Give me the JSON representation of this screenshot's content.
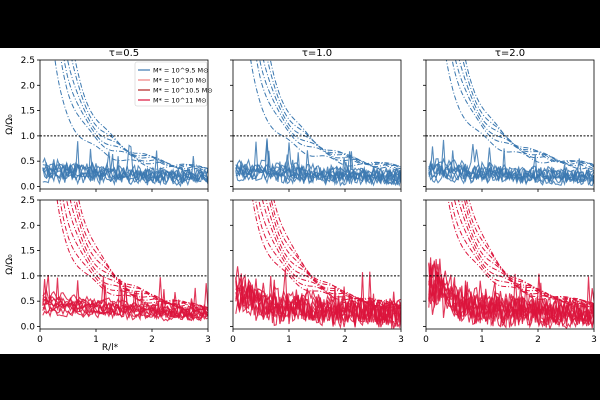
{
  "chart_data": {
    "type": "line",
    "layout": "2x3 grid",
    "column_titles": [
      "τ=0.5",
      "τ=1.0",
      "τ=2.0"
    ],
    "xlabel": "R/l*",
    "ylabel": "Ω/Ω₀",
    "xlim": [
      0,
      3
    ],
    "ylim": [
      -0.05,
      2.5
    ],
    "xticks": [
      "0",
      "1",
      "2",
      "3"
    ],
    "yticks": [
      "0.0",
      "0.5",
      "1.0",
      "1.5",
      "2.0",
      "2.5"
    ],
    "reference_line": {
      "y": 1.0,
      "style": "dotted",
      "color": "#000000"
    },
    "legend": {
      "placement": "top-right of first panel",
      "entries": [
        {
          "label": "M* = 10^9.5 M⊙",
          "color": "#3b78b0"
        },
        {
          "label": "M* = 10^10 M⊙",
          "color": "#f08080"
        },
        {
          "label": "M* = 10^10.5 M⊙",
          "color": "#b22222"
        },
        {
          "label": "M* = 10^11 M⊙",
          "color": "#dc143c"
        }
      ]
    },
    "rows": [
      {
        "row": "top",
        "color": "#3b78b0",
        "dashdot_curves": [
          {
            "A": 0.95,
            "p": 1.0
          },
          {
            "A": 1.05,
            "p": 1.05
          },
          {
            "A": 1.15,
            "p": 1.1
          },
          {
            "A": 1.25,
            "p": 1.2
          },
          {
            "A": 1.35,
            "p": 1.3
          },
          {
            "A": 0.75,
            "p": 0.9
          }
        ],
        "solid_curves_baseline": [
          0.35,
          0.3,
          0.25,
          0.2,
          0.15,
          0.4,
          0.3,
          0.22
        ]
      },
      {
        "row": "bottom",
        "color": "#dc143c",
        "dashdot_curves": [
          {
            "A": 0.95,
            "p": 0.95
          },
          {
            "A": 1.05,
            "p": 1.0
          },
          {
            "A": 1.15,
            "p": 1.05
          },
          {
            "A": 1.25,
            "p": 1.1
          },
          {
            "A": 1.35,
            "p": 1.2
          },
          {
            "A": 1.45,
            "p": 1.25
          },
          {
            "A": 0.85,
            "p": 0.9
          },
          {
            "A": 1.55,
            "p": 1.35
          }
        ],
        "solid_curves_baseline": [
          0.6,
          0.5,
          0.45,
          0.4,
          0.35,
          0.3,
          0.25,
          0.5,
          0.35,
          0.45
        ]
      }
    ]
  }
}
